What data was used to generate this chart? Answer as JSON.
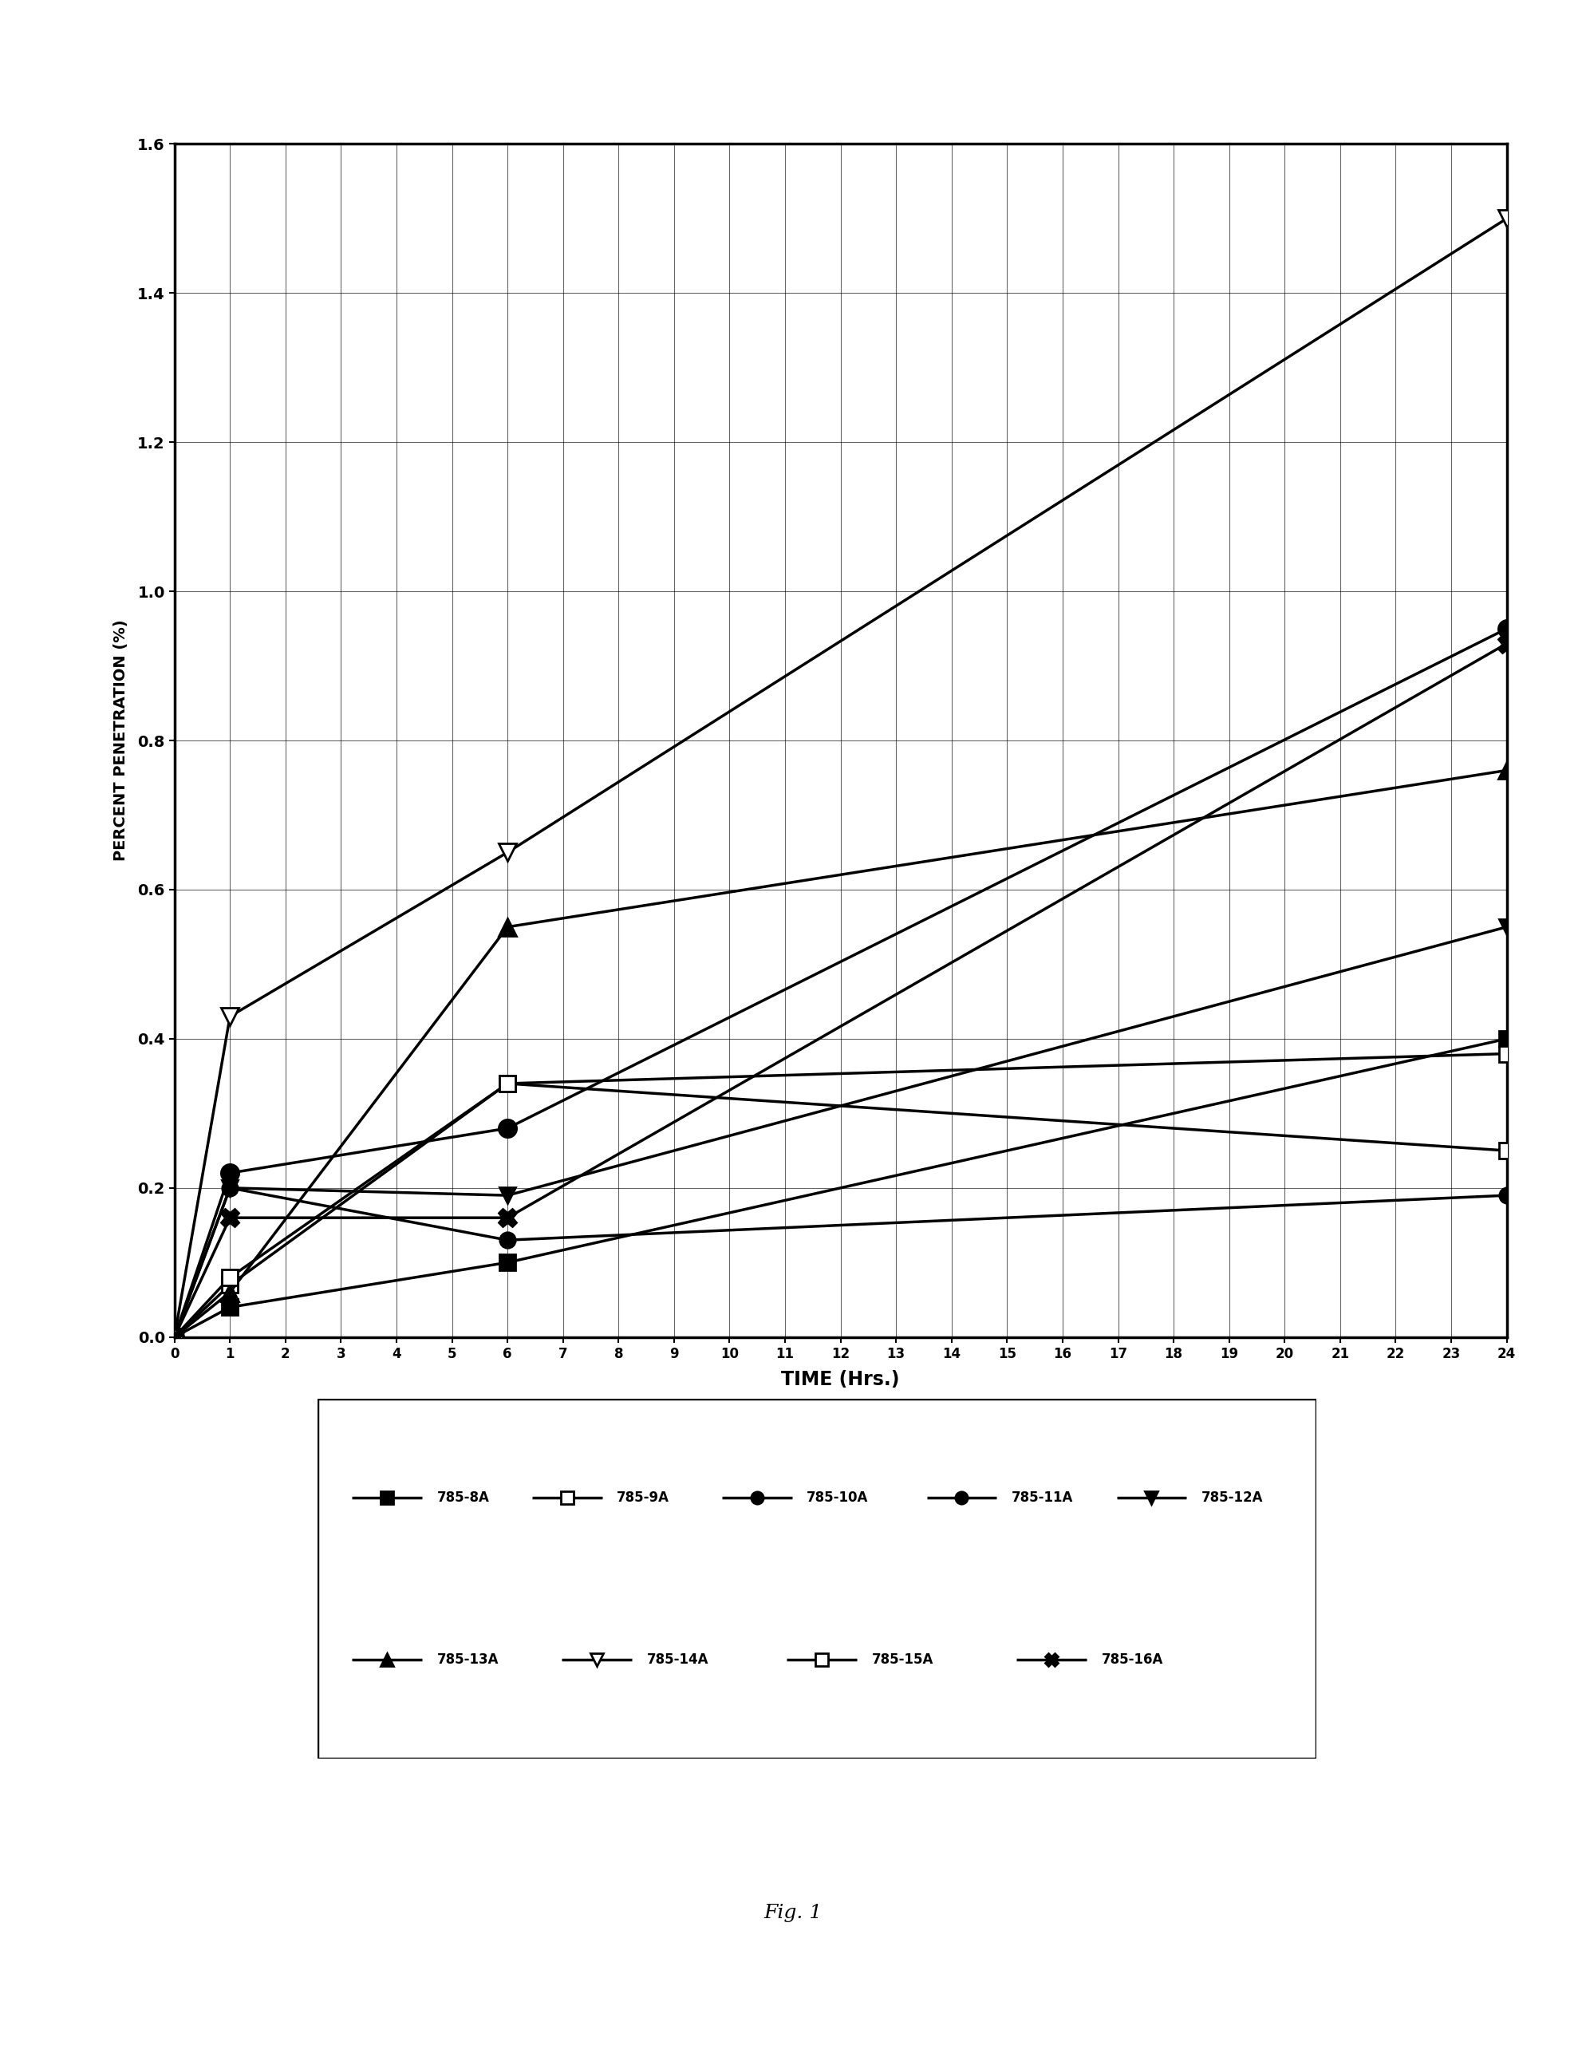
{
  "title": "",
  "xlabel": "TIME (Hrs.)",
  "ylabel": "PERCENT PENETRATION (%)",
  "fig_label": "Fig. 1",
  "xlim": [
    0,
    24
  ],
  "ylim": [
    0.0,
    1.6
  ],
  "xticks": [
    0,
    1,
    2,
    3,
    4,
    5,
    6,
    7,
    8,
    9,
    10,
    11,
    12,
    13,
    14,
    15,
    16,
    17,
    18,
    19,
    20,
    21,
    22,
    23,
    24
  ],
  "yticks": [
    0.0,
    0.2,
    0.4,
    0.6,
    0.8,
    1.0,
    1.2,
    1.4,
    1.6
  ],
  "series": {
    "785-8A": {
      "x": [
        0,
        1,
        6,
        24
      ],
      "y": [
        0.0,
        0.04,
        0.1,
        0.4
      ]
    },
    "785-9A": {
      "x": [
        0,
        1,
        6,
        24
      ],
      "y": [
        0.0,
        0.07,
        0.34,
        0.38
      ]
    },
    "785-10A": {
      "x": [
        0,
        1,
        6,
        24
      ],
      "y": [
        0.0,
        0.22,
        0.28,
        0.95
      ]
    },
    "785-11A": {
      "x": [
        0,
        1,
        6,
        24
      ],
      "y": [
        0.0,
        0.2,
        0.13,
        0.19
      ]
    },
    "785-12A": {
      "x": [
        0,
        1,
        6,
        24
      ],
      "y": [
        0.0,
        0.2,
        0.19,
        0.55
      ]
    },
    "785-13A": {
      "x": [
        0,
        1,
        6,
        24
      ],
      "y": [
        0.0,
        0.06,
        0.55,
        0.76
      ]
    },
    "785-14A": {
      "x": [
        0,
        1,
        6,
        24
      ],
      "y": [
        0.0,
        0.43,
        0.65,
        1.5
      ]
    },
    "785-15A": {
      "x": [
        0,
        1,
        6,
        24
      ],
      "y": [
        0.0,
        0.08,
        0.34,
        0.25
      ]
    },
    "785-16A": {
      "x": [
        0,
        1,
        6,
        24
      ],
      "y": [
        0.0,
        0.16,
        0.16,
        0.93
      ]
    }
  },
  "series_styles": {
    "785-8A": {
      "marker": "s",
      "ms": 14,
      "mfc": "black",
      "mec": "black",
      "lw": 2.5
    },
    "785-9A": {
      "marker": "s",
      "ms": 14,
      "mfc": "white",
      "mec": "black",
      "lw": 2.5,
      "inner_cross": true
    },
    "785-10A": {
      "marker": "o",
      "ms": 16,
      "mfc": "black",
      "mec": "black",
      "lw": 2.5
    },
    "785-11A": {
      "marker": "o",
      "ms": 14,
      "mfc": "black",
      "mec": "black",
      "lw": 2.5
    },
    "785-12A": {
      "marker": "v",
      "ms": 14,
      "mfc": "black",
      "mec": "black",
      "lw": 2.5
    },
    "785-13A": {
      "marker": "^",
      "ms": 16,
      "mfc": "black",
      "mec": "black",
      "lw": 2.5
    },
    "785-14A": {
      "marker": "v",
      "ms": 16,
      "mfc": "white",
      "mec": "black",
      "lw": 2.5
    },
    "785-15A": {
      "marker": "s",
      "ms": 14,
      "mfc": "white",
      "mec": "black",
      "lw": 2.5,
      "inner_grid": true
    },
    "785-16A": {
      "marker": "X",
      "ms": 16,
      "mfc": "black",
      "mec": "black",
      "lw": 2.5
    }
  },
  "background_color": "#ffffff",
  "line_color": "#000000"
}
